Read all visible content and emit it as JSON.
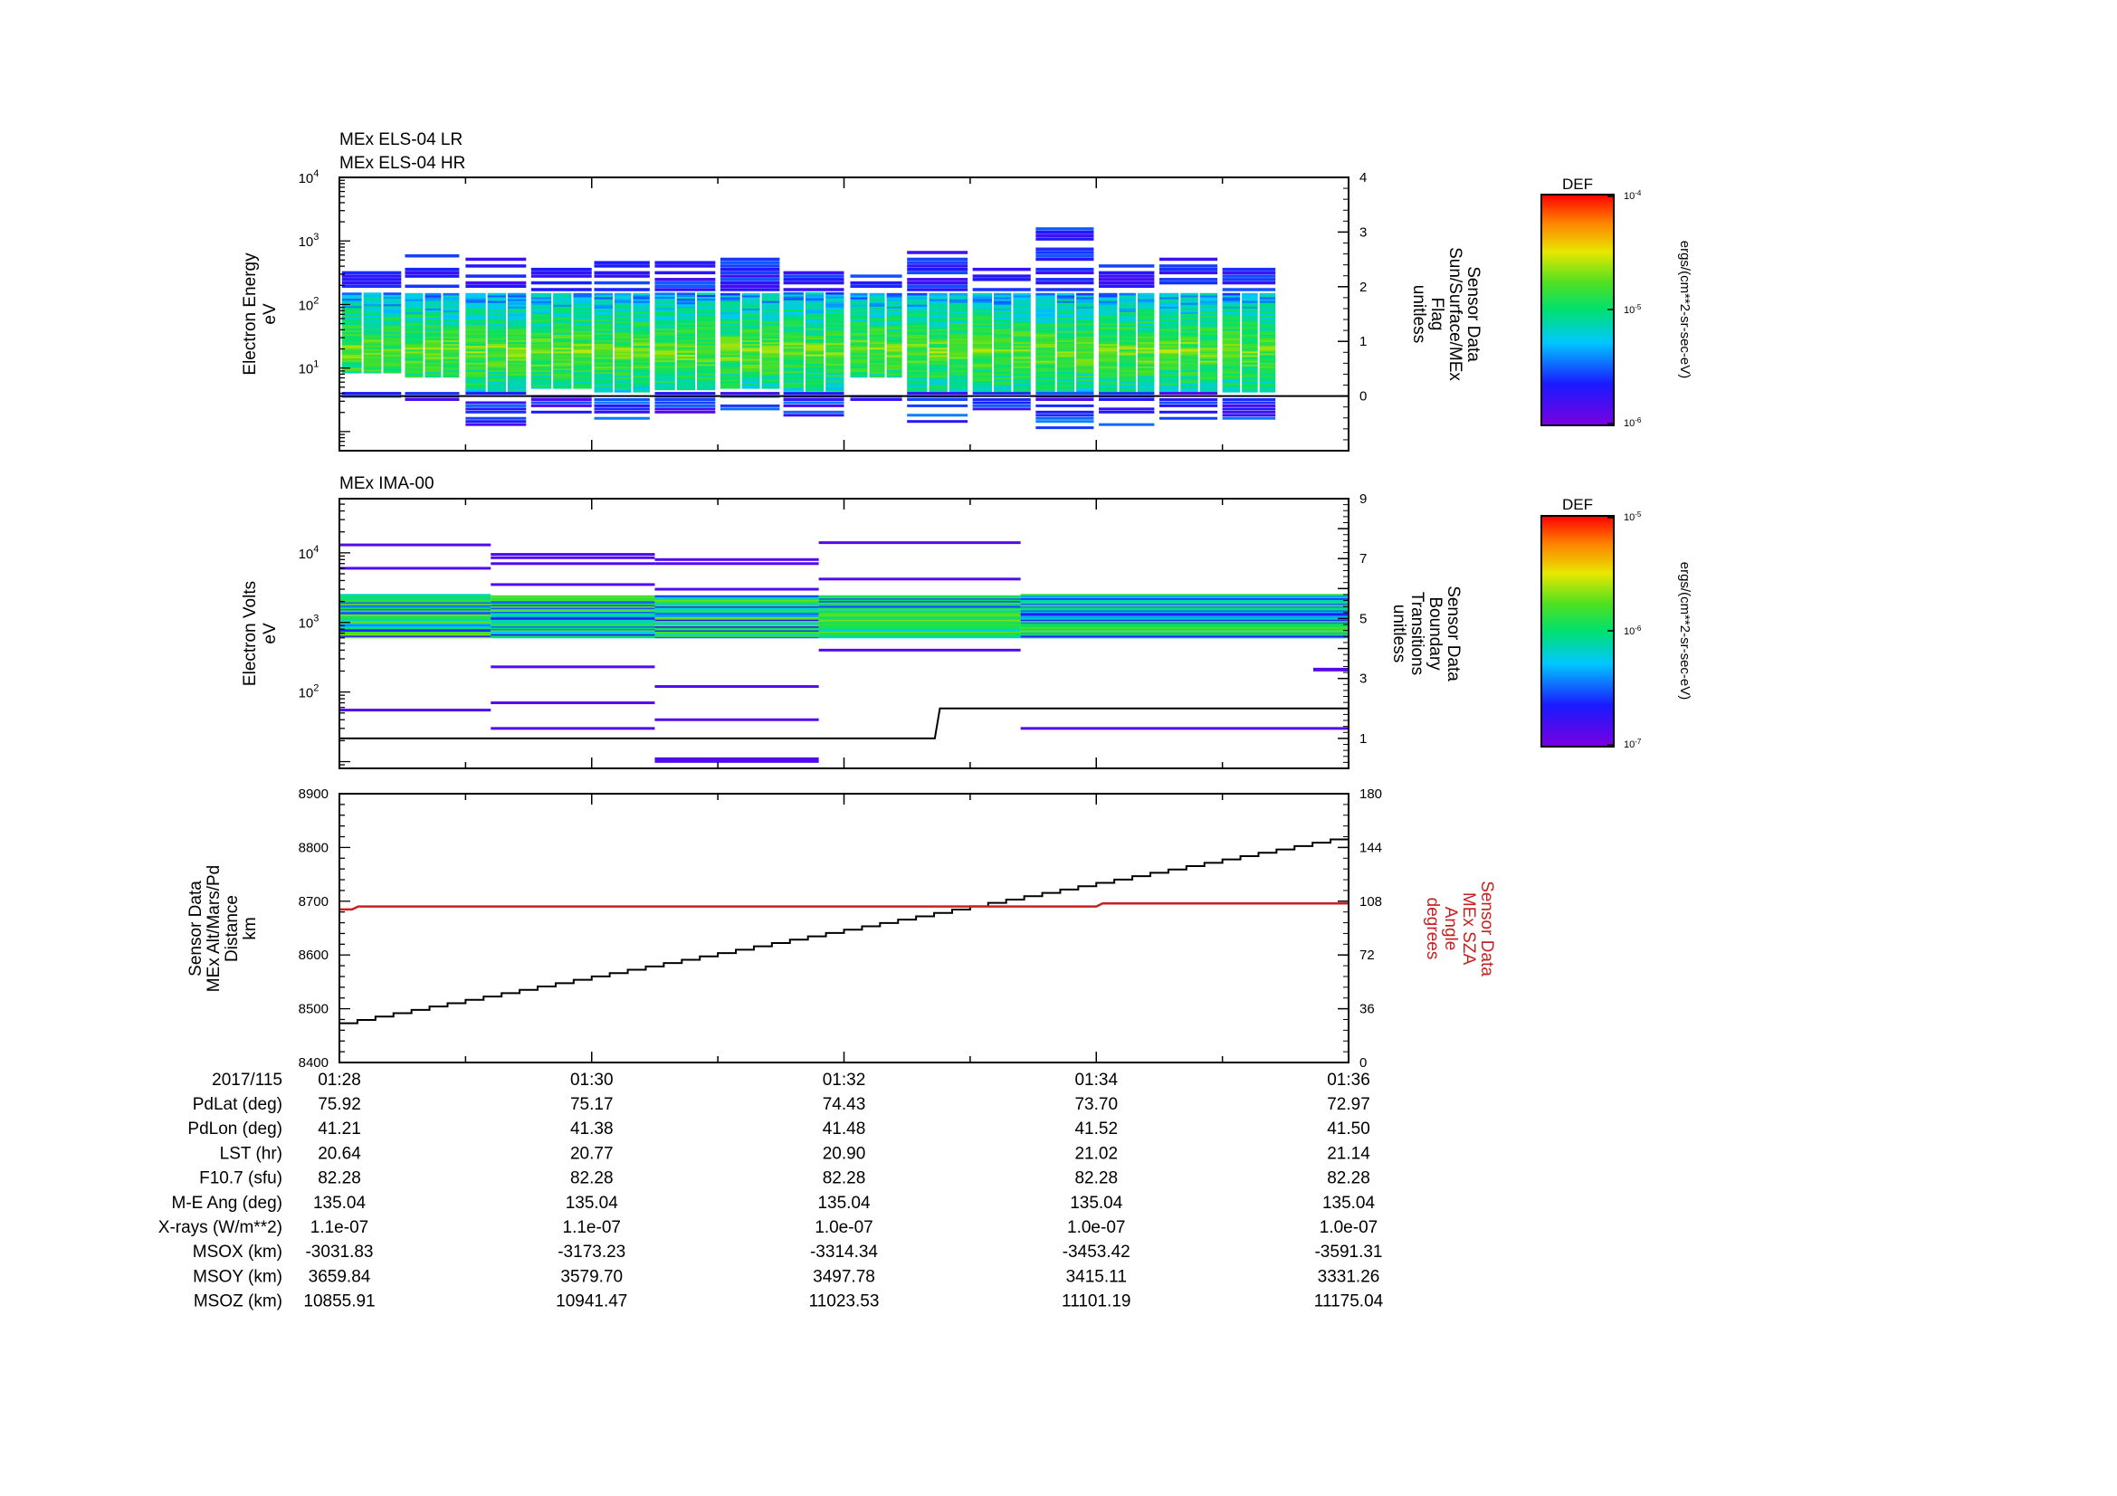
{
  "chart_data": [
    {
      "type": "heatmap",
      "id": "els",
      "titles": [
        "MEx ELS-04 LR",
        "MEx ELS-04 HR"
      ],
      "ylabel": [
        "Electron Energy",
        "eV"
      ],
      "ylim": [
        0.5,
        10000
      ],
      "yscale": "log",
      "yticks": [
        {
          "exp": "4"
        },
        {
          "exp": "3"
        },
        {
          "exp": "2"
        },
        {
          "exp": "1"
        }
      ],
      "y2label": [
        "Sensor Data",
        "Sun/Surface/MEx",
        "Flag",
        "unitless"
      ],
      "y2lim": [
        -1,
        4
      ],
      "y2ticks": [
        "4",
        "3",
        "2",
        "1",
        "0"
      ],
      "y2values": [
        -1,
        0,
        1,
        2,
        3,
        4
      ],
      "flag_line": [
        [
          0,
          0
        ],
        [
          8,
          0
        ]
      ],
      "colorbar": {
        "label": "DEF",
        "units": "ergs/(cm**2-sr-sec-eV)",
        "ticks": [
          "-4",
          "-5",
          "-6"
        ]
      },
      "blocks": [
        {
          "t0": 0.02,
          "t1": 0.49,
          "emin": 3.5,
          "emax": 350
        },
        {
          "t0": 0.52,
          "t1": 0.95,
          "emin": 3.0,
          "emax": 600
        },
        {
          "t0": 1.0,
          "t1": 1.48,
          "emin": 1.2,
          "emax": 560
        },
        {
          "t0": 1.52,
          "t1": 2.0,
          "emin": 2.0,
          "emax": 460
        },
        {
          "t0": 2.02,
          "t1": 2.46,
          "emin": 1.3,
          "emax": 460
        },
        {
          "t0": 2.5,
          "t1": 2.98,
          "emin": 1.9,
          "emax": 460
        },
        {
          "t0": 3.02,
          "t1": 3.49,
          "emin": 2.0,
          "emax": 570
        },
        {
          "t0": 3.52,
          "t1": 4.0,
          "emin": 1.8,
          "emax": 380
        },
        {
          "t0": 4.05,
          "t1": 4.46,
          "emin": 3.0,
          "emax": 280
        },
        {
          "t0": 4.5,
          "t1": 4.98,
          "emin": 1.2,
          "emax": 700
        },
        {
          "t0": 5.02,
          "t1": 5.48,
          "emin": 1.6,
          "emax": 380
        },
        {
          "t0": 5.52,
          "t1": 5.98,
          "emin": 1.1,
          "emax": 1700
        },
        {
          "t0": 6.02,
          "t1": 6.46,
          "emin": 1.2,
          "emax": 420
        },
        {
          "t0": 6.5,
          "t1": 6.96,
          "emin": 1.3,
          "emax": 520
        },
        {
          "t0": 7.0,
          "t1": 7.42,
          "emin": 1.5,
          "emax": 380
        }
      ]
    },
    {
      "type": "heatmap",
      "id": "ima",
      "titles": [
        "MEx IMA-00"
      ],
      "ylabel": [
        "Electron Volts",
        "eV"
      ],
      "ylim": [
        8,
        60000
      ],
      "yscale": "log",
      "yticks": [
        {
          "exp": "4"
        },
        {
          "exp": "3"
        },
        {
          "exp": "2"
        }
      ],
      "y2label": [
        "Sensor Data",
        "Boundary",
        "Transitions",
        "unitless"
      ],
      "y2lim": [
        0,
        9
      ],
      "y2ticks": [
        "9",
        "7",
        "5",
        "3",
        "1"
      ],
      "y2values": [
        0,
        1,
        2,
        3,
        4,
        5,
        6,
        7,
        8,
        9
      ],
      "boundary_line": [
        [
          0,
          1
        ],
        [
          4.72,
          1
        ],
        [
          4.76,
          2
        ],
        [
          8,
          2
        ]
      ],
      "colorbar": {
        "label": "DEF",
        "units": "ergs/(cm**2-sr-sec-eV)",
        "ticks": [
          "-5",
          "-6",
          "-7"
        ]
      },
      "sweeps": [
        {
          "t0": 0.0,
          "t1": 1.2,
          "lines": [
            13000,
            6000,
            55
          ],
          "band": [
            600,
            2500
          ]
        },
        {
          "t0": 1.2,
          "t1": 2.5,
          "lines": [
            9500,
            8500,
            7000,
            3500,
            230,
            70,
            30
          ],
          "band": [
            600,
            2400
          ]
        },
        {
          "t0": 2.5,
          "t1": 3.8,
          "lines": [
            8000,
            7000,
            3000,
            120,
            40,
            11
          ],
          "band": [
            600,
            2400
          ]
        },
        {
          "t0": 3.8,
          "t1": 5.4,
          "lines": [
            14000,
            4200,
            400
          ],
          "band": [
            600,
            2400
          ]
        },
        {
          "t0": 5.4,
          "t1": 8.0,
          "lines": [
            30
          ],
          "band": [
            600,
            2500
          ]
        }
      ],
      "extra_segment": {
        "t0": 7.72,
        "t1": 8.0,
        "value": 210
      }
    },
    {
      "type": "line",
      "id": "orbit",
      "ylabel": [
        "Sensor Data",
        "MEx Alt/Mars/Pd",
        "Distance",
        "km"
      ],
      "ylim": [
        8400,
        8900
      ],
      "yticks": [
        "8900",
        "8800",
        "8700",
        "8600",
        "8500",
        "8400"
      ],
      "y2label": [
        "Sensor Data",
        "MEx SZA",
        "Angle",
        "degrees"
      ],
      "y2lim": [
        0,
        180
      ],
      "y2ticks": [
        "180",
        "144",
        "108",
        "72",
        "36",
        "0"
      ],
      "y2values": [
        0,
        36,
        72,
        108,
        144,
        180
      ],
      "y2color": "#c82020",
      "series": [
        {
          "name": "MEx Alt",
          "axis": "left",
          "color": "#000000",
          "x": [
            0,
            8
          ],
          "values": [
            8473,
            8815
          ],
          "steps": 56
        },
        {
          "name": "MEx SZA",
          "axis": "right",
          "color": "#c82020",
          "x": [
            0,
            0.1,
            0.15,
            6.0,
            6.05,
            8.0
          ],
          "values": [
            102.5,
            102.5,
            104.5,
            104.5,
            106.5,
            106.5
          ]
        }
      ]
    }
  ],
  "xaxis": {
    "date": "2017/115",
    "ticks": [
      "01:28",
      "01:30",
      "01:32",
      "01:34",
      "01:36"
    ],
    "minutes": [
      0,
      2,
      4,
      6,
      8
    ]
  },
  "ephemeris": [
    {
      "label": "PdLat (deg)",
      "values": [
        "75.92",
        "75.17",
        "74.43",
        "73.70",
        "72.97"
      ]
    },
    {
      "label": "PdLon (deg)",
      "values": [
        "41.21",
        "41.38",
        "41.48",
        "41.52",
        "41.50"
      ]
    },
    {
      "label": "LST (hr)",
      "values": [
        "20.64",
        "20.77",
        "20.90",
        "21.02",
        "21.14"
      ]
    },
    {
      "label": "F10.7 (sfu)",
      "values": [
        "82.28",
        "82.28",
        "82.28",
        "82.28",
        "82.28"
      ]
    },
    {
      "label": "M-E Ang (deg)",
      "values": [
        "135.04",
        "135.04",
        "135.04",
        "135.04",
        "135.04"
      ]
    },
    {
      "label": "X-rays (W/m**2)",
      "values": [
        "1.1e-07",
        "1.1e-07",
        "1.0e-07",
        "1.0e-07",
        "1.0e-07"
      ]
    },
    {
      "label": "MSOX (km)",
      "values": [
        "-3031.83",
        "-3173.23",
        "-3314.34",
        "-3453.42",
        "-3591.31"
      ]
    },
    {
      "label": "MSOY (km)",
      "values": [
        "3659.84",
        "3579.70",
        "3497.78",
        "3415.11",
        "3331.26"
      ]
    },
    {
      "label": "MSOZ (km)",
      "values": [
        "10855.91",
        "10941.47",
        "11023.53",
        "11101.19",
        "11175.04"
      ]
    }
  ]
}
